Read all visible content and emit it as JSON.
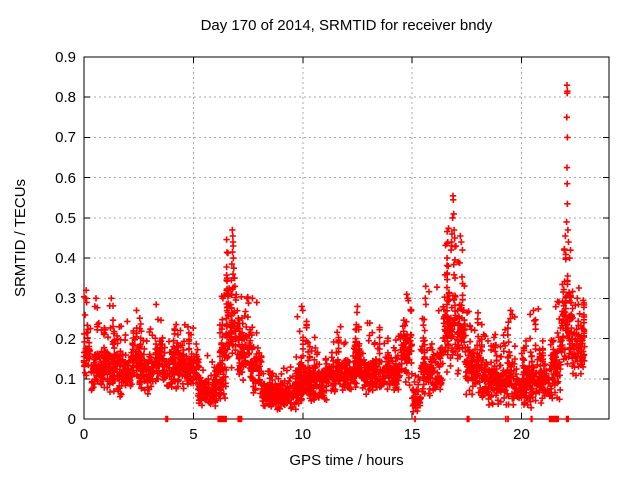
{
  "chart_data": {
    "type": "scatter",
    "title": "Day 170 of 2014, SRMTID for receiver bndy",
    "xlabel": "GPS time / hours",
    "ylabel": "SRMTID / TECUs",
    "xlim": [
      0,
      24
    ],
    "ylim": [
      0,
      0.9
    ],
    "grid": true,
    "legend": "none",
    "marker": {
      "shape": "plus",
      "color": "#ff0000"
    },
    "grid_color": "#a8a8a8",
    "axis_color": "#000000",
    "axes": {
      "x": {
        "ticks": [
          {
            "value": 0,
            "label": "0"
          },
          {
            "value": 5,
            "label": "5"
          },
          {
            "value": 10,
            "label": "10"
          },
          {
            "value": 15,
            "label": "15"
          },
          {
            "value": 20,
            "label": "20"
          }
        ]
      },
      "y": {
        "ticks": [
          {
            "value": 0.0,
            "label": "0"
          },
          {
            "value": 0.1,
            "label": "0.1"
          },
          {
            "value": 0.2,
            "label": "0.2"
          },
          {
            "value": 0.3,
            "label": "0.3"
          },
          {
            "value": 0.4,
            "label": "0.4"
          },
          {
            "value": 0.5,
            "label": "0.5"
          },
          {
            "value": 0.6,
            "label": "0.6"
          },
          {
            "value": 0.7,
            "label": "0.7"
          },
          {
            "value": 0.8,
            "label": "0.8"
          },
          {
            "value": 0.9,
            "label": "0.9"
          }
        ]
      }
    },
    "series_name": "SRMTID",
    "data_time_span_hours": [
      0,
      22.9
    ],
    "density_bins": [
      [
        0.0,
        0.3,
        40,
        0.07,
        0.25,
        0.32
      ],
      [
        0.3,
        0.8,
        60,
        0.05,
        0.18,
        0.3
      ],
      [
        0.8,
        1.5,
        85,
        0.06,
        0.2,
        0.3
      ],
      [
        1.5,
        2.2,
        85,
        0.05,
        0.18,
        0.27
      ],
      [
        2.2,
        2.6,
        50,
        0.07,
        0.22,
        0.28
      ],
      [
        2.6,
        3.2,
        70,
        0.05,
        0.18,
        0.25
      ],
      [
        3.2,
        3.6,
        50,
        0.07,
        0.22,
        0.29
      ],
      [
        3.6,
        5.2,
        190,
        0.07,
        0.19,
        0.24
      ],
      [
        5.2,
        6.1,
        110,
        0.02,
        0.12,
        0.16
      ],
      [
        6.1,
        6.5,
        50,
        0.04,
        0.2,
        0.31
      ],
      [
        6.5,
        7.0,
        60,
        0.12,
        0.35,
        0.47
      ],
      [
        7.0,
        7.6,
        70,
        0.08,
        0.25,
        0.31
      ],
      [
        7.6,
        8.15,
        65,
        0.06,
        0.2,
        0.3
      ],
      [
        8.15,
        9.7,
        185,
        0.015,
        0.1,
        0.13
      ],
      [
        9.7,
        10.2,
        60,
        0.03,
        0.15,
        0.28
      ],
      [
        10.2,
        11.2,
        120,
        0.04,
        0.15,
        0.22
      ],
      [
        11.2,
        12.3,
        130,
        0.06,
        0.16,
        0.23
      ],
      [
        12.3,
        12.7,
        50,
        0.07,
        0.2,
        0.28
      ],
      [
        12.7,
        14.4,
        200,
        0.06,
        0.16,
        0.24
      ],
      [
        14.4,
        15.0,
        70,
        0.08,
        0.24,
        0.31
      ],
      [
        15.0,
        15.4,
        45,
        0.01,
        0.1,
        0.13
      ],
      [
        15.4,
        15.8,
        45,
        0.05,
        0.22,
        0.33
      ],
      [
        15.8,
        16.4,
        70,
        0.05,
        0.2,
        0.33
      ],
      [
        16.4,
        17.05,
        80,
        0.1,
        0.35,
        0.5
      ],
      [
        17.05,
        17.45,
        50,
        0.1,
        0.3,
        0.46
      ],
      [
        17.45,
        18.2,
        90,
        0.04,
        0.2,
        0.28
      ],
      [
        18.2,
        19.2,
        120,
        0.03,
        0.15,
        0.22
      ],
      [
        19.2,
        19.7,
        60,
        0.02,
        0.18,
        0.28
      ],
      [
        19.7,
        20.3,
        70,
        0.03,
        0.14,
        0.2
      ],
      [
        20.3,
        20.8,
        60,
        0.02,
        0.18,
        0.28
      ],
      [
        20.8,
        21.3,
        60,
        0.03,
        0.15,
        0.22
      ],
      [
        21.3,
        21.8,
        60,
        0.03,
        0.22,
        0.3
      ],
      [
        21.8,
        22.3,
        70,
        0.12,
        0.38,
        0.47
      ],
      [
        22.3,
        22.9,
        70,
        0.08,
        0.28,
        0.33
      ]
    ],
    "peak_points": [
      [
        0.1,
        0.32
      ],
      [
        0.08,
        0.3
      ],
      [
        0.12,
        0.29
      ],
      [
        0.55,
        0.3
      ],
      [
        1.25,
        0.3
      ],
      [
        2.4,
        0.27
      ],
      [
        3.3,
        0.285
      ],
      [
        6.3,
        0.305
      ],
      [
        6.35,
        0.3
      ],
      [
        6.78,
        0.47
      ],
      [
        6.8,
        0.455
      ],
      [
        6.81,
        0.44
      ],
      [
        6.82,
        0.43
      ],
      [
        6.79,
        0.415
      ],
      [
        6.83,
        0.4
      ],
      [
        6.76,
        0.385
      ],
      [
        6.85,
        0.375
      ],
      [
        6.81,
        0.36
      ],
      [
        6.87,
        0.35
      ],
      [
        6.74,
        0.345
      ],
      [
        6.9,
        0.33
      ],
      [
        7.7,
        0.3
      ],
      [
        7.9,
        0.29
      ],
      [
        9.95,
        0.28
      ],
      [
        10.0,
        0.27
      ],
      [
        12.5,
        0.28
      ],
      [
        12.48,
        0.265
      ],
      [
        14.75,
        0.31
      ],
      [
        14.8,
        0.3
      ],
      [
        15.62,
        0.33
      ],
      [
        15.6,
        0.3
      ],
      [
        15.63,
        0.285
      ],
      [
        16.6,
        0.4
      ],
      [
        16.65,
        0.38
      ],
      [
        16.87,
        0.555
      ],
      [
        16.88,
        0.545
      ],
      [
        16.9,
        0.51
      ],
      [
        16.85,
        0.5
      ],
      [
        16.92,
        0.47
      ],
      [
        16.82,
        0.46
      ],
      [
        16.95,
        0.45
      ],
      [
        16.8,
        0.44
      ],
      [
        17.0,
        0.43
      ],
      [
        16.78,
        0.42
      ],
      [
        17.1,
        0.39
      ],
      [
        17.2,
        0.455
      ],
      [
        17.25,
        0.44
      ],
      [
        17.3,
        0.42
      ],
      [
        19.5,
        0.27
      ],
      [
        20.55,
        0.27
      ],
      [
        21.95,
        0.42
      ],
      [
        22.0,
        0.455
      ],
      [
        22.08,
        0.83
      ],
      [
        22.1,
        0.815
      ],
      [
        22.09,
        0.81
      ],
      [
        22.07,
        0.75
      ],
      [
        22.1,
        0.7
      ],
      [
        22.08,
        0.625
      ],
      [
        22.09,
        0.585
      ],
      [
        22.1,
        0.535
      ],
      [
        22.06,
        0.49
      ],
      [
        22.12,
        0.47
      ],
      [
        22.15,
        0.44
      ],
      [
        22.2,
        0.4
      ],
      [
        22.55,
        0.3
      ],
      [
        22.6,
        0.285
      ]
    ],
    "zero_clusters": [
      [
        3.74,
        3.84,
        8
      ],
      [
        6.13,
        6.5,
        40
      ],
      [
        7.03,
        7.2,
        8
      ],
      [
        15.08,
        15.14,
        2
      ],
      [
        17.45,
        17.6,
        4
      ],
      [
        19.28,
        19.4,
        3
      ],
      [
        20.38,
        20.48,
        2
      ],
      [
        21.28,
        21.68,
        32
      ],
      [
        22.03,
        22.16,
        10
      ]
    ]
  }
}
